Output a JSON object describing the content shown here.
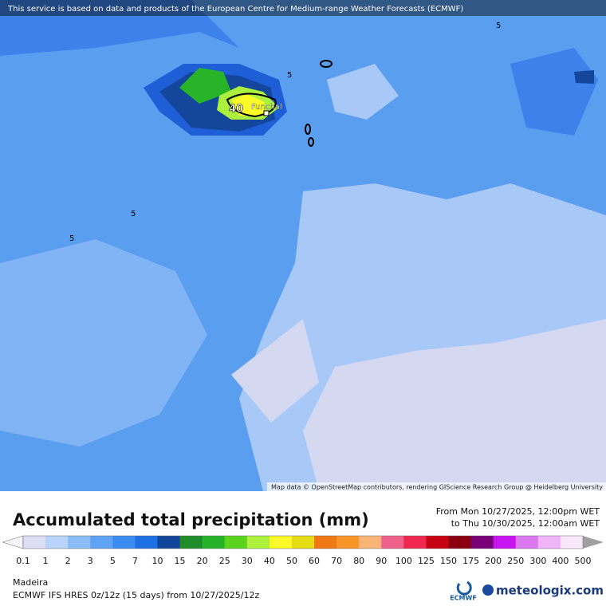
{
  "banner": "This service is based on data and products of the European Centre for Medium-range Weather Forecasts (ECMWF)",
  "map": {
    "contour_labels": [
      "5",
      "5",
      "5",
      "5",
      "40"
    ],
    "place": "Funchal",
    "attribution": "Map data © OpenStreetMap contributors, rendering GIScience Research Group @ Heidelberg University"
  },
  "title": "Accumulated total precipitation (mm)",
  "period": {
    "from": "From Mon 10/27/2025, 12:00pm WET",
    "to": "to Thu 10/30/2025, 12:00am WET"
  },
  "legend": {
    "labels": [
      "0.1",
      "1",
      "2",
      "3",
      "5",
      "7",
      "10",
      "15",
      "20",
      "25",
      "30",
      "40",
      "50",
      "60",
      "70",
      "80",
      "90",
      "100",
      "125",
      "150",
      "175",
      "200",
      "250",
      "300",
      "400",
      "500"
    ],
    "colors": [
      "#dcdcf4",
      "#b8d4fa",
      "#8cbcf6",
      "#5ea4f2",
      "#3c8cf0",
      "#1e70e6",
      "#14469c",
      "#1e8c28",
      "#28b428",
      "#5ad21e",
      "#aaf03c",
      "#fafa28",
      "#e6dc14",
      "#f07814",
      "#fa9628",
      "#fab478",
      "#f0608c",
      "#f02850",
      "#c80014",
      "#8c0014",
      "#780078",
      "#c814f0",
      "#dc78f0",
      "#f0b4fa",
      "#fae6fa"
    ],
    "under_color": "#f4f4fa",
    "over_color": "#c8c8c8",
    "last_color": "#a0a0a0"
  },
  "region": "Madeira",
  "model": "ECMWF IFS HRES 0z/12z (15 days) from  10/27/2025/12z",
  "ecmwf_logo": "ECMWF",
  "brand": "meteologix.com"
}
